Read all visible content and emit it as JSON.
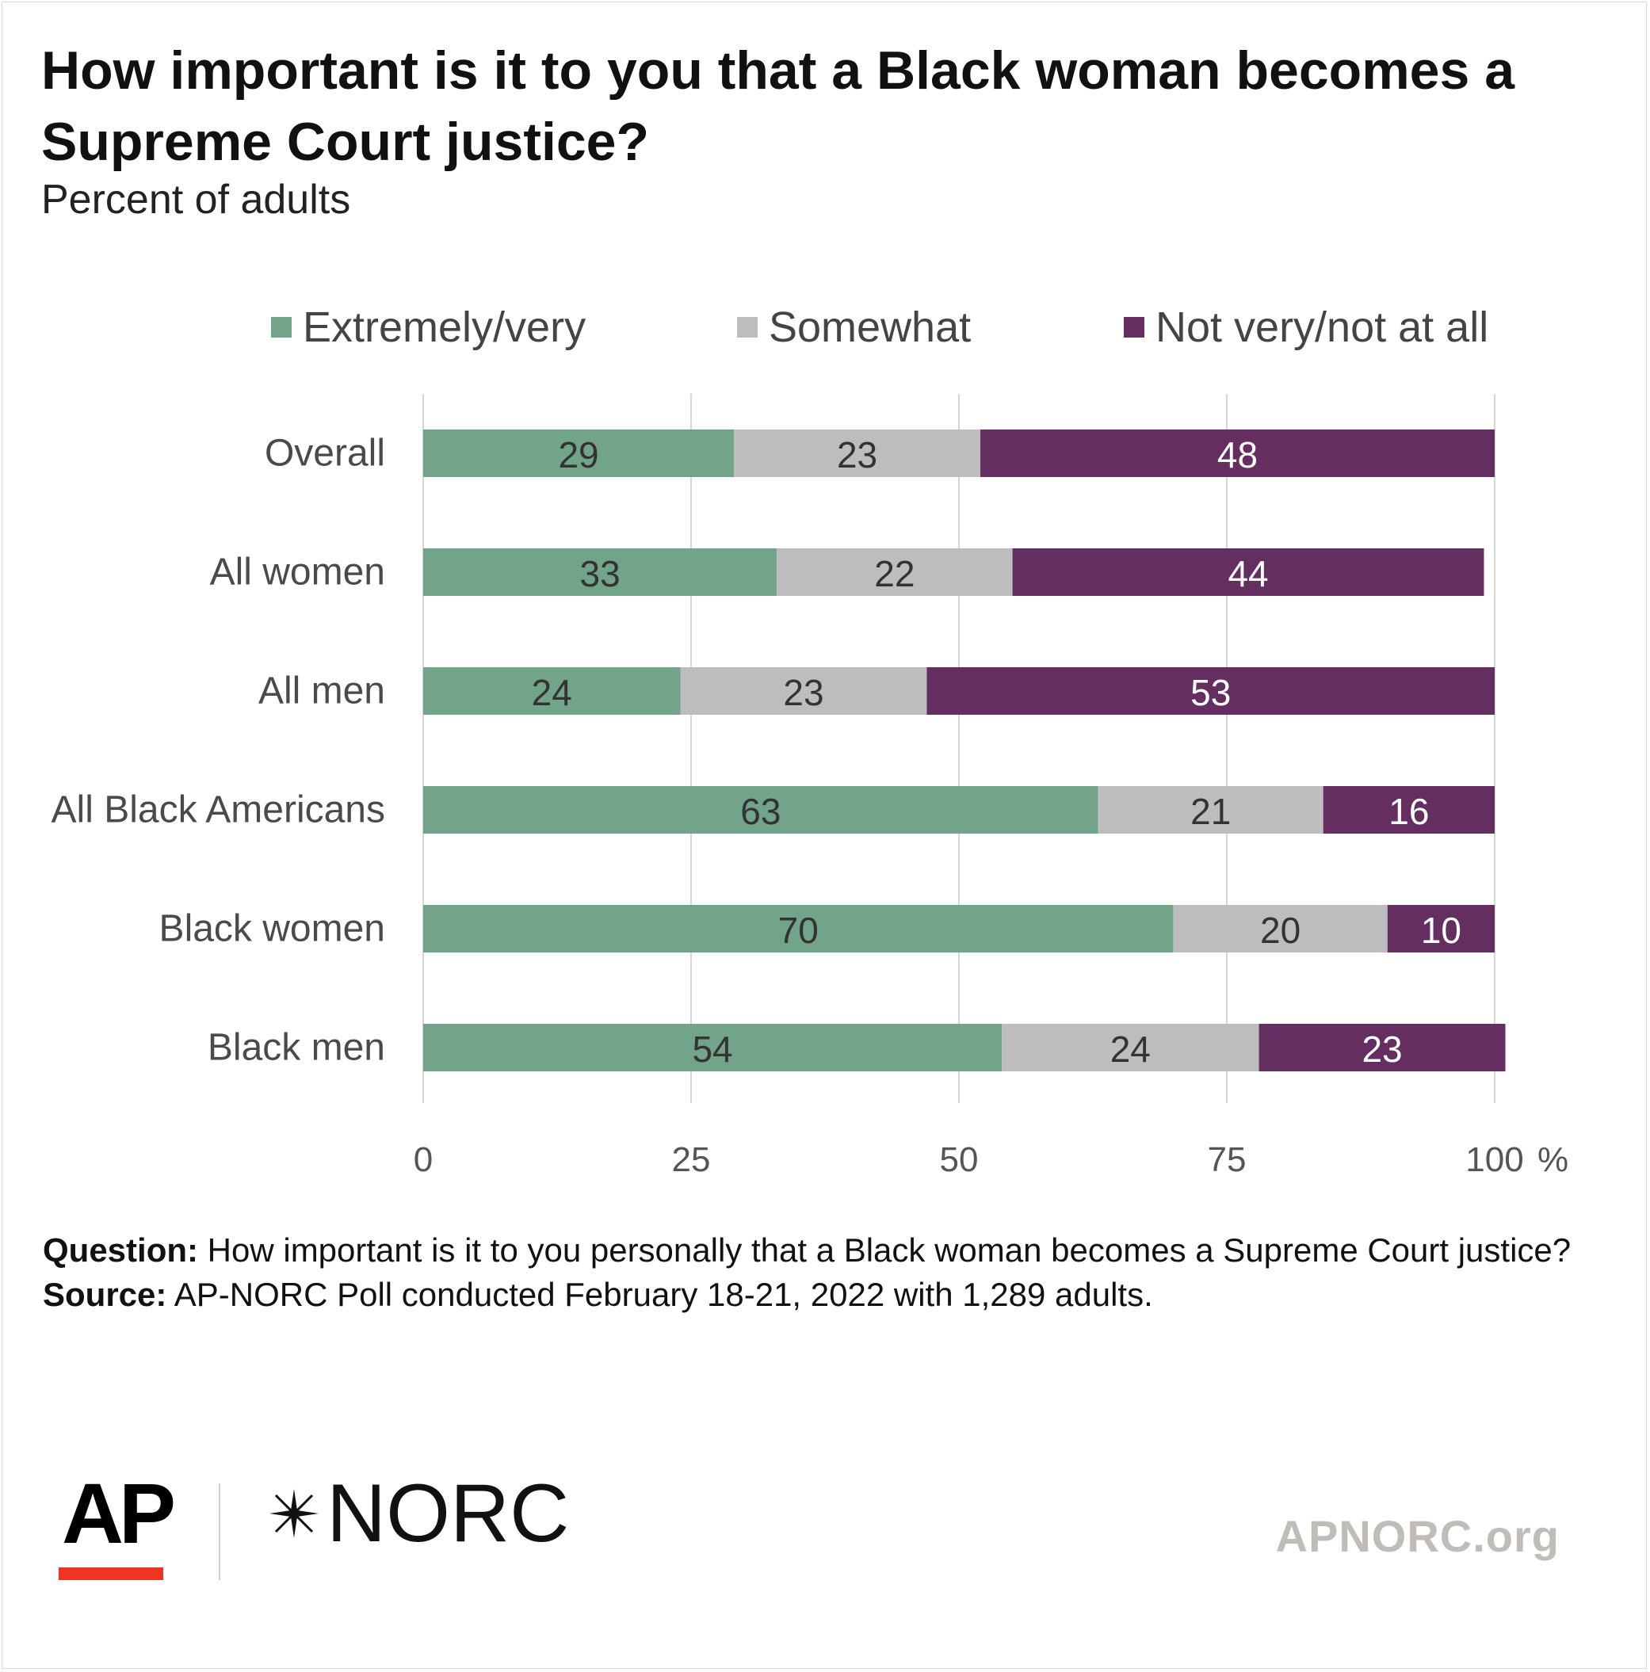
{
  "title": "How important is it to you that a Black woman becomes a Supreme Court justice?",
  "subtitle": "Percent of adults",
  "chart_data": {
    "type": "bar",
    "orientation": "horizontal",
    "stacked": true,
    "categories": [
      "Overall",
      "All women",
      "All men",
      "All Black Americans",
      "Black women",
      "Black men"
    ],
    "series": [
      {
        "name": "Extremely/very",
        "color": "#72a48a",
        "values": [
          29,
          33,
          24,
          63,
          70,
          54
        ]
      },
      {
        "name": "Somewhat",
        "color": "#bdbdbd",
        "values": [
          23,
          22,
          23,
          21,
          20,
          24
        ]
      },
      {
        "name": "Not very/not at all",
        "color": "#652e61",
        "values": [
          48,
          44,
          53,
          16,
          10,
          23
        ]
      }
    ],
    "xlim": [
      0,
      100
    ],
    "x_ticks": [
      0,
      25,
      50,
      75,
      100
    ],
    "x_tick_labels": [
      "0",
      "25",
      "50",
      "75",
      "100"
    ],
    "x_unit": "%",
    "grid": true,
    "legend_position": "top"
  },
  "notes": {
    "question_label": "Question:",
    "question_text": "How important is it to you personally that a Black woman becomes a Supreme Court justice?",
    "source_label": "Source:",
    "source_text": "AP-NORC Poll conducted February 18-21, 2022 with 1,289 adults."
  },
  "branding": {
    "ap_logo": "AP",
    "norc_logo": "NORC",
    "norc_icon": "star-icon",
    "ap_accent_color": "#ee3524",
    "website": "APNORC.org"
  }
}
